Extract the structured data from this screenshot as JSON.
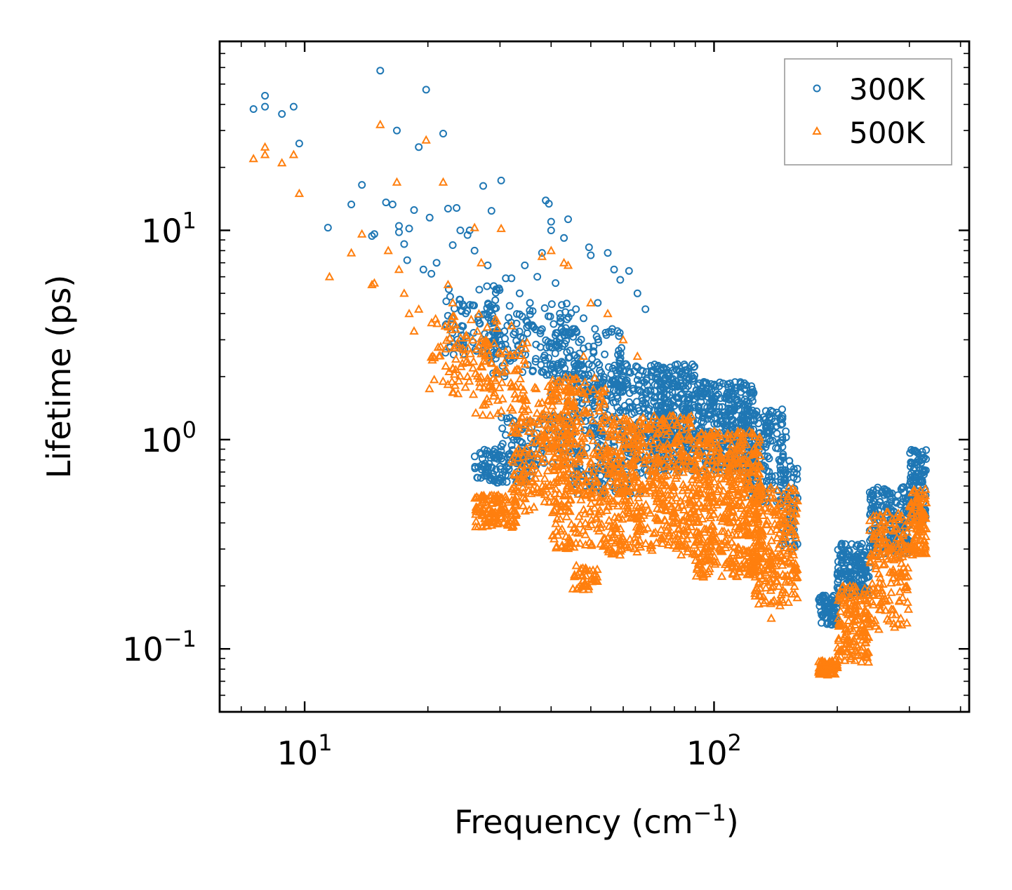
{
  "chart_data": {
    "type": "scatter",
    "title": "",
    "xlabel": {
      "text": "Frequency (cm",
      "sup": "−1",
      "tail": ")"
    },
    "ylabel": "Lifetime (ps)",
    "xscale": "log",
    "yscale": "log",
    "xlim": [
      6.2,
      420
    ],
    "ylim": [
      0.05,
      80
    ],
    "x_ticks": [
      {
        "value": 10,
        "base": "10",
        "exp": "1"
      },
      {
        "value": 100,
        "base": "10",
        "exp": "2"
      }
    ],
    "y_ticks": [
      {
        "value": 0.1,
        "base": "10",
        "exp": "−1"
      },
      {
        "value": 1,
        "base": "10",
        "exp": "0"
      },
      {
        "value": 10,
        "base": "10",
        "exp": "1"
      }
    ],
    "legend_position": "top-right",
    "series": [
      {
        "name": "300K",
        "marker": "circle",
        "color": "#1f77b4",
        "points": [
          [
            7.5,
            38
          ],
          [
            8.0,
            44
          ],
          [
            8.0,
            39
          ],
          [
            8.8,
            36
          ],
          [
            9.4,
            39
          ],
          [
            9.7,
            26
          ],
          [
            11.4,
            10.3
          ],
          [
            13.0,
            13.3
          ],
          [
            13.8,
            16.5
          ],
          [
            14.6,
            9.4
          ],
          [
            14.8,
            9.6
          ],
          [
            15.3,
            58
          ],
          [
            15.8,
            13.6
          ],
          [
            16.4,
            13.3
          ],
          [
            16.8,
            30
          ],
          [
            17.0,
            10.5
          ],
          [
            17.0,
            9.8
          ],
          [
            17.5,
            8.6
          ],
          [
            17.8,
            7.2
          ],
          [
            18.0,
            10.2
          ],
          [
            18.5,
            12.5
          ],
          [
            19.0,
            25
          ],
          [
            19.5,
            6.5
          ],
          [
            19.8,
            47
          ],
          [
            20.2,
            11.5
          ],
          [
            20.4,
            6.2
          ],
          [
            21.0,
            7.0
          ],
          [
            21.8,
            29
          ],
          [
            22.4,
            12.7
          ],
          [
            23.0,
            8.5
          ],
          [
            23.5,
            12.8
          ],
          [
            24.0,
            10.0
          ],
          [
            25.0,
            9.5
          ],
          [
            25.3,
            10.0
          ],
          [
            26.0,
            8.0
          ],
          [
            27.3,
            16.3
          ],
          [
            28.0,
            6.8
          ],
          [
            28.6,
            12.4
          ],
          [
            29.5,
            5.2
          ],
          [
            30.2,
            17.3
          ],
          [
            31.0,
            5.9
          ],
          [
            32.0,
            5.9
          ],
          [
            33.5,
            5.0
          ],
          [
            34.5,
            6.8
          ],
          [
            35.5,
            4.5
          ],
          [
            37.0,
            6.0
          ],
          [
            38.0,
            7.8
          ],
          [
            38.8,
            13.9
          ],
          [
            39.5,
            13.4
          ],
          [
            40.0,
            11.0
          ],
          [
            40.0,
            10.0
          ],
          [
            41.0,
            5.6
          ],
          [
            42.0,
            4.0
          ],
          [
            43.0,
            9.2
          ],
          [
            44.0,
            11.3
          ],
          [
            46.0,
            4.2
          ],
          [
            48.0,
            3.8
          ],
          [
            49.5,
            8.3
          ],
          [
            50.0,
            7.6
          ],
          [
            52.0,
            4.5
          ],
          [
            55.0,
            7.8
          ],
          [
            57.0,
            6.5
          ],
          [
            59.0,
            5.8
          ],
          [
            62.0,
            6.4
          ],
          [
            65.0,
            5.0
          ],
          [
            68.0,
            4.2
          ]
        ],
        "bands": [
          {
            "x": [
              22,
              30
            ],
            "y": [
              2.5,
              5.5
            ],
            "n": 90
          },
          {
            "x": [
              28,
              45
            ],
            "y": [
              2.0,
              4.5
            ],
            "n": 130
          },
          {
            "x": [
              40,
              60
            ],
            "y": [
              1.5,
              3.5
            ],
            "n": 120
          },
          {
            "x": [
              26,
              36
            ],
            "y": [
              0.62,
              0.9
            ],
            "n": 110
          },
          {
            "x": [
              30,
              45
            ],
            "y": [
              0.75,
              1.3
            ],
            "n": 100
          },
          {
            "x": [
              45,
              70
            ],
            "y": [
              0.55,
              2.3
            ],
            "n": 350
          },
          {
            "x": [
              70,
              90
            ],
            "y": [
              0.7,
              2.3
            ],
            "n": 330
          },
          {
            "x": [
              90,
              125
            ],
            "y": [
              0.7,
              1.9
            ],
            "n": 350
          },
          {
            "x": [
              120,
              150
            ],
            "y": [
              0.5,
              1.4
            ],
            "n": 170
          },
          {
            "x": [
              145,
              160
            ],
            "y": [
              0.3,
              0.8
            ],
            "n": 60
          },
          {
            "x": [
              180,
              200
            ],
            "y": [
              0.13,
              0.18
            ],
            "n": 70
          },
          {
            "x": [
              200,
              240
            ],
            "y": [
              0.18,
              0.32
            ],
            "n": 150
          },
          {
            "x": [
              240,
              300
            ],
            "y": [
              0.28,
              0.6
            ],
            "n": 170
          },
          {
            "x": [
              300,
              330
            ],
            "y": [
              0.4,
              0.9
            ],
            "n": 110
          }
        ]
      },
      {
        "name": "500K",
        "marker": "triangle",
        "color": "#ff7f0e",
        "points": [
          [
            7.5,
            22
          ],
          [
            8.0,
            25
          ],
          [
            8.0,
            23
          ],
          [
            8.8,
            21
          ],
          [
            9.4,
            23
          ],
          [
            9.7,
            15
          ],
          [
            11.5,
            6.0
          ],
          [
            13.0,
            7.8
          ],
          [
            13.8,
            9.6
          ],
          [
            14.6,
            5.5
          ],
          [
            14.8,
            5.6
          ],
          [
            15.3,
            32
          ],
          [
            16.0,
            8.0
          ],
          [
            16.8,
            17.0
          ],
          [
            17.0,
            6.5
          ],
          [
            17.5,
            5.0
          ],
          [
            18.0,
            4.0
          ],
          [
            18.5,
            3.3
          ],
          [
            19.0,
            4.2
          ],
          [
            19.8,
            27
          ],
          [
            20.5,
            2.4
          ],
          [
            21.8,
            17.0
          ],
          [
            22.4,
            5.5
          ],
          [
            23.0,
            4.5
          ],
          [
            25.0,
            2.0
          ],
          [
            26.0,
            10.3
          ],
          [
            27.0,
            7.0
          ],
          [
            28.0,
            1.9
          ],
          [
            30.2,
            10.2
          ],
          [
            32.0,
            3.5
          ],
          [
            38.0,
            7.5
          ],
          [
            40.0,
            8.0
          ],
          [
            43.0,
            7.0
          ],
          [
            44.0,
            6.8
          ],
          [
            48.0,
            2.5
          ],
          [
            50.0,
            4.5
          ],
          [
            55.0,
            4.0
          ],
          [
            60.0,
            3.0
          ],
          [
            65.0,
            2.5
          ],
          [
            138.0,
            0.14
          ]
        ],
        "bands": [
          {
            "x": [
              20,
              30
            ],
            "y": [
              1.6,
              4.0
            ],
            "n": 80
          },
          {
            "x": [
              25,
              35
            ],
            "y": [
              1.3,
              3.0
            ],
            "n": 70
          },
          {
            "x": [
              26,
              33
            ],
            "y": [
              0.38,
              0.55
            ],
            "n": 120
          },
          {
            "x": [
              32,
              45
            ],
            "y": [
              0.45,
              1.8
            ],
            "n": 220
          },
          {
            "x": [
              40,
              55
            ],
            "y": [
              0.3,
              2.0
            ],
            "n": 280
          },
          {
            "x": [
              45,
              52
            ],
            "y": [
              0.19,
              0.25
            ],
            "n": 40
          },
          {
            "x": [
              55,
              90
            ],
            "y": [
              0.28,
              1.3
            ],
            "n": 520
          },
          {
            "x": [
              90,
              130
            ],
            "y": [
              0.22,
              1.1
            ],
            "n": 520
          },
          {
            "x": [
              125,
              160
            ],
            "y": [
              0.16,
              0.6
            ],
            "n": 230
          },
          {
            "x": [
              180,
              200
            ],
            "y": [
              0.075,
              0.09
            ],
            "n": 60
          },
          {
            "x": [
              200,
              240
            ],
            "y": [
              0.085,
              0.2
            ],
            "n": 150
          },
          {
            "x": [
              240,
              300
            ],
            "y": [
              0.12,
              0.45
            ],
            "n": 170
          },
          {
            "x": [
              300,
              330
            ],
            "y": [
              0.28,
              0.58
            ],
            "n": 100
          }
        ]
      }
    ]
  }
}
